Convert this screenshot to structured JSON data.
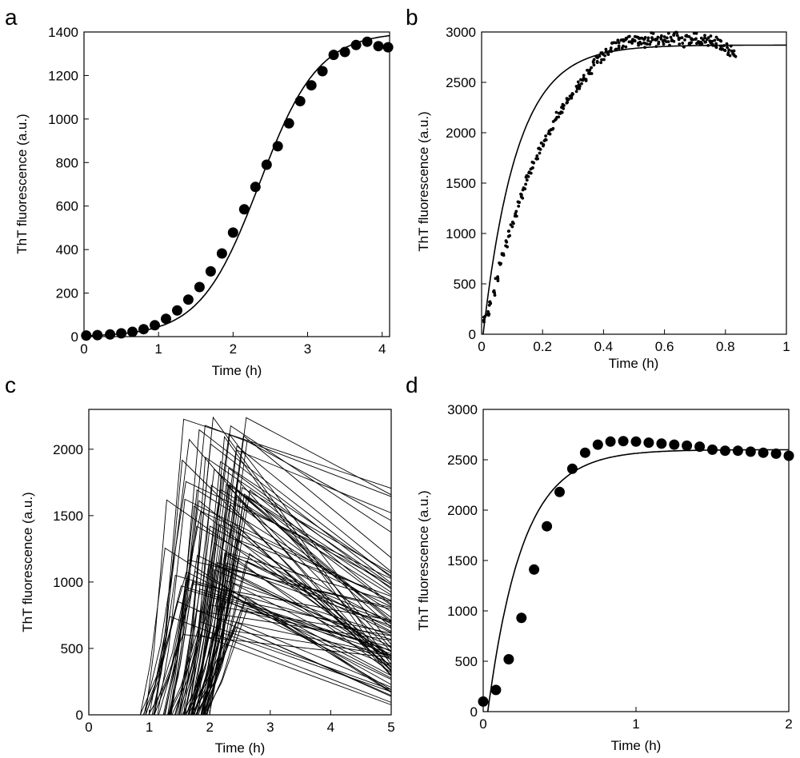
{
  "panels": [
    {
      "id": "a",
      "letter": "a",
      "type": "scatter",
      "xlabel": "Time (h)",
      "ylabel": "ThT fluorescence (a.u.)",
      "xlim": [
        0,
        4.1
      ],
      "ylim": [
        0,
        1400
      ],
      "xticks": [
        0,
        1,
        2,
        3,
        4
      ],
      "yticks": [
        0,
        200,
        400,
        600,
        800,
        1000,
        1200,
        1400
      ],
      "marker": "large-dot",
      "points_x": [
        0.03,
        0.18,
        0.35,
        0.5,
        0.65,
        0.8,
        0.95,
        1.1,
        1.25,
        1.4,
        1.55,
        1.7,
        1.85,
        2.0,
        2.15,
        2.3,
        2.45,
        2.6,
        2.75,
        2.9,
        3.05,
        3.2,
        3.35,
        3.5,
        3.65,
        3.8,
        3.95,
        4.08
      ],
      "points_y": [
        5,
        7,
        10,
        15,
        22,
        34,
        52,
        82,
        120,
        170,
        228,
        300,
        382,
        478,
        585,
        688,
        790,
        875,
        980,
        1082,
        1155,
        1220,
        1295,
        1308,
        1340,
        1355,
        1335,
        1330
      ],
      "fit": {
        "kind": "sigmoid",
        "ymax": 1400,
        "k": 2.52,
        "t50": 2.35
      }
    },
    {
      "id": "b",
      "letter": "b",
      "type": "scatter",
      "xlabel": "Time (h)",
      "ylabel": "ThT fluorescence (a.u.)",
      "xlim": [
        0,
        1
      ],
      "ylim": [
        0,
        3000
      ],
      "xticks": [
        0,
        0.2,
        0.4,
        0.6,
        0.8,
        1
      ],
      "yticks": [
        0,
        500,
        1000,
        1500,
        2000,
        2500,
        3000
      ],
      "marker": "small-dot",
      "points_x": [
        0.01,
        0.02,
        0.03,
        0.04,
        0.05,
        0.06,
        0.07,
        0.08,
        0.09,
        0.1,
        0.11,
        0.12,
        0.13,
        0.14,
        0.15,
        0.16,
        0.17,
        0.18,
        0.19,
        0.2,
        0.21,
        0.22,
        0.23,
        0.24,
        0.25,
        0.26,
        0.27,
        0.28,
        0.29,
        0.3,
        0.31,
        0.32,
        0.33,
        0.34,
        0.35,
        0.36,
        0.37,
        0.38,
        0.39,
        0.4,
        0.41,
        0.42,
        0.43,
        0.44,
        0.45,
        0.46,
        0.47,
        0.48,
        0.49,
        0.5,
        0.51,
        0.52,
        0.53,
        0.54,
        0.55,
        0.56,
        0.57,
        0.58,
        0.59,
        0.6,
        0.61,
        0.62,
        0.63,
        0.64,
        0.65,
        0.66,
        0.67,
        0.68,
        0.69,
        0.7,
        0.71,
        0.72,
        0.73,
        0.74,
        0.75,
        0.76,
        0.77,
        0.78,
        0.79,
        0.8,
        0.81,
        0.82,
        0.83
      ],
      "points_y": [
        150,
        200,
        300,
        420,
        560,
        680,
        800,
        900,
        1000,
        1100,
        1200,
        1300,
        1380,
        1460,
        1540,
        1610,
        1680,
        1750,
        1820,
        1880,
        1950,
        2010,
        2060,
        2120,
        2170,
        2220,
        2270,
        2310,
        2350,
        2390,
        2430,
        2470,
        2510,
        2550,
        2600,
        2640,
        2680,
        2720,
        2750,
        2780,
        2800,
        2830,
        2850,
        2870,
        2880,
        2890,
        2900,
        2905,
        2910,
        2900,
        2920,
        2915,
        2930,
        2900,
        2920,
        2940,
        2910,
        2930,
        2950,
        2920,
        2940,
        2910,
        2930,
        2960,
        2920,
        2900,
        2940,
        2910,
        2930,
        2950,
        2920,
        2900,
        2930,
        2910,
        2920,
        2890,
        2900,
        2880,
        2870,
        2850,
        2820,
        2810,
        2790
      ],
      "fit": {
        "kind": "exp",
        "ymax": 2870,
        "k": 9.0,
        "t0": 0.005
      }
    },
    {
      "id": "c",
      "letter": "c",
      "type": "line",
      "xlabel": "Time (h)",
      "ylabel": "ThT fluorescence (a.u.)",
      "xlim": [
        0,
        5
      ],
      "ylim": [
        0,
        2300
      ],
      "xticks": [
        0,
        1,
        2,
        3,
        4,
        5
      ],
      "yticks": [
        0,
        500,
        1000,
        1500,
        2000
      ],
      "trace_count": 90,
      "trace_seed": 7
    },
    {
      "id": "d",
      "letter": "d",
      "type": "scatter",
      "xlabel": "Time (h)",
      "ylabel": "ThT fluorescence (a.u.)",
      "xlim": [
        0,
        2
      ],
      "ylim": [
        0,
        3000
      ],
      "xticks": [
        0,
        1,
        2
      ],
      "yticks": [
        0,
        500,
        1000,
        1500,
        2000,
        2500,
        3000
      ],
      "marker": "large-dot",
      "points_x": [
        0.0,
        0.083,
        0.167,
        0.25,
        0.333,
        0.417,
        0.5,
        0.583,
        0.667,
        0.75,
        0.833,
        0.917,
        1.0,
        1.083,
        1.167,
        1.25,
        1.333,
        1.417,
        1.5,
        1.583,
        1.667,
        1.75,
        1.833,
        1.917,
        2.0
      ],
      "points_y": [
        100,
        215,
        520,
        930,
        1410,
        1840,
        2180,
        2410,
        2570,
        2650,
        2680,
        2685,
        2680,
        2670,
        2660,
        2650,
        2640,
        2630,
        2600,
        2590,
        2590,
        2580,
        2570,
        2560,
        2540
      ],
      "fit": {
        "kind": "exp",
        "ymax": 2600,
        "k": 4.4,
        "t0": 0.03
      }
    }
  ],
  "chart_data": [
    {
      "type": "scatter",
      "xlabel": "Time (h)",
      "ylabel": "ThT fluorescence (a.u.)",
      "xlim": [
        0,
        4.1
      ],
      "ylim": [
        0,
        1400
      ],
      "series": [
        {
          "name": "",
          "x": [
            0.03,
            0.18,
            0.35,
            0.5,
            0.65,
            0.8,
            0.95,
            1.1,
            1.25,
            1.4,
            1.55,
            1.7,
            1.85,
            2.0,
            2.15,
            2.3,
            2.45,
            2.6,
            2.75,
            2.9,
            3.05,
            3.2,
            3.35,
            3.5,
            3.65,
            3.8,
            3.95,
            4.08
          ],
          "y": [
            5,
            7,
            10,
            15,
            22,
            34,
            52,
            82,
            120,
            170,
            228,
            300,
            382,
            478,
            585,
            688,
            790,
            875,
            980,
            1082,
            1155,
            1220,
            1295,
            1308,
            1340,
            1355,
            1335,
            1330
          ]
        }
      ]
    },
    {
      "type": "scatter",
      "xlabel": "Time (h)",
      "ylabel": "ThT fluorescence (a.u.)",
      "xlim": [
        0,
        1
      ],
      "ylim": [
        0,
        3000
      ],
      "series": [
        {
          "name": "",
          "x_range": [
            0.01,
            0.83
          ],
          "y_plateau": 2900
        }
      ]
    },
    {
      "type": "line",
      "xlabel": "Time (h)",
      "ylabel": "ThT fluorescence (a.u.)",
      "xlim": [
        0,
        5
      ],
      "ylim": [
        0,
        2300
      ],
      "series_count": 90
    },
    {
      "type": "scatter",
      "xlabel": "Time (h)",
      "ylabel": "ThT fluorescence (a.u.)",
      "xlim": [
        0,
        2
      ],
      "ylim": [
        0,
        3000
      ],
      "series": [
        {
          "name": "",
          "x": [
            0.0,
            0.083,
            0.167,
            0.25,
            0.333,
            0.417,
            0.5,
            0.583,
            0.667,
            0.75,
            0.833,
            0.917,
            1.0,
            1.083,
            1.167,
            1.25,
            1.333,
            1.417,
            1.5,
            1.583,
            1.667,
            1.75,
            1.833,
            1.917,
            2.0
          ],
          "y": [
            100,
            215,
            520,
            930,
            1410,
            1840,
            2180,
            2410,
            2570,
            2650,
            2680,
            2685,
            2680,
            2670,
            2660,
            2650,
            2640,
            2630,
            2600,
            2590,
            2590,
            2580,
            2570,
            2560,
            2540
          ]
        }
      ]
    }
  ]
}
